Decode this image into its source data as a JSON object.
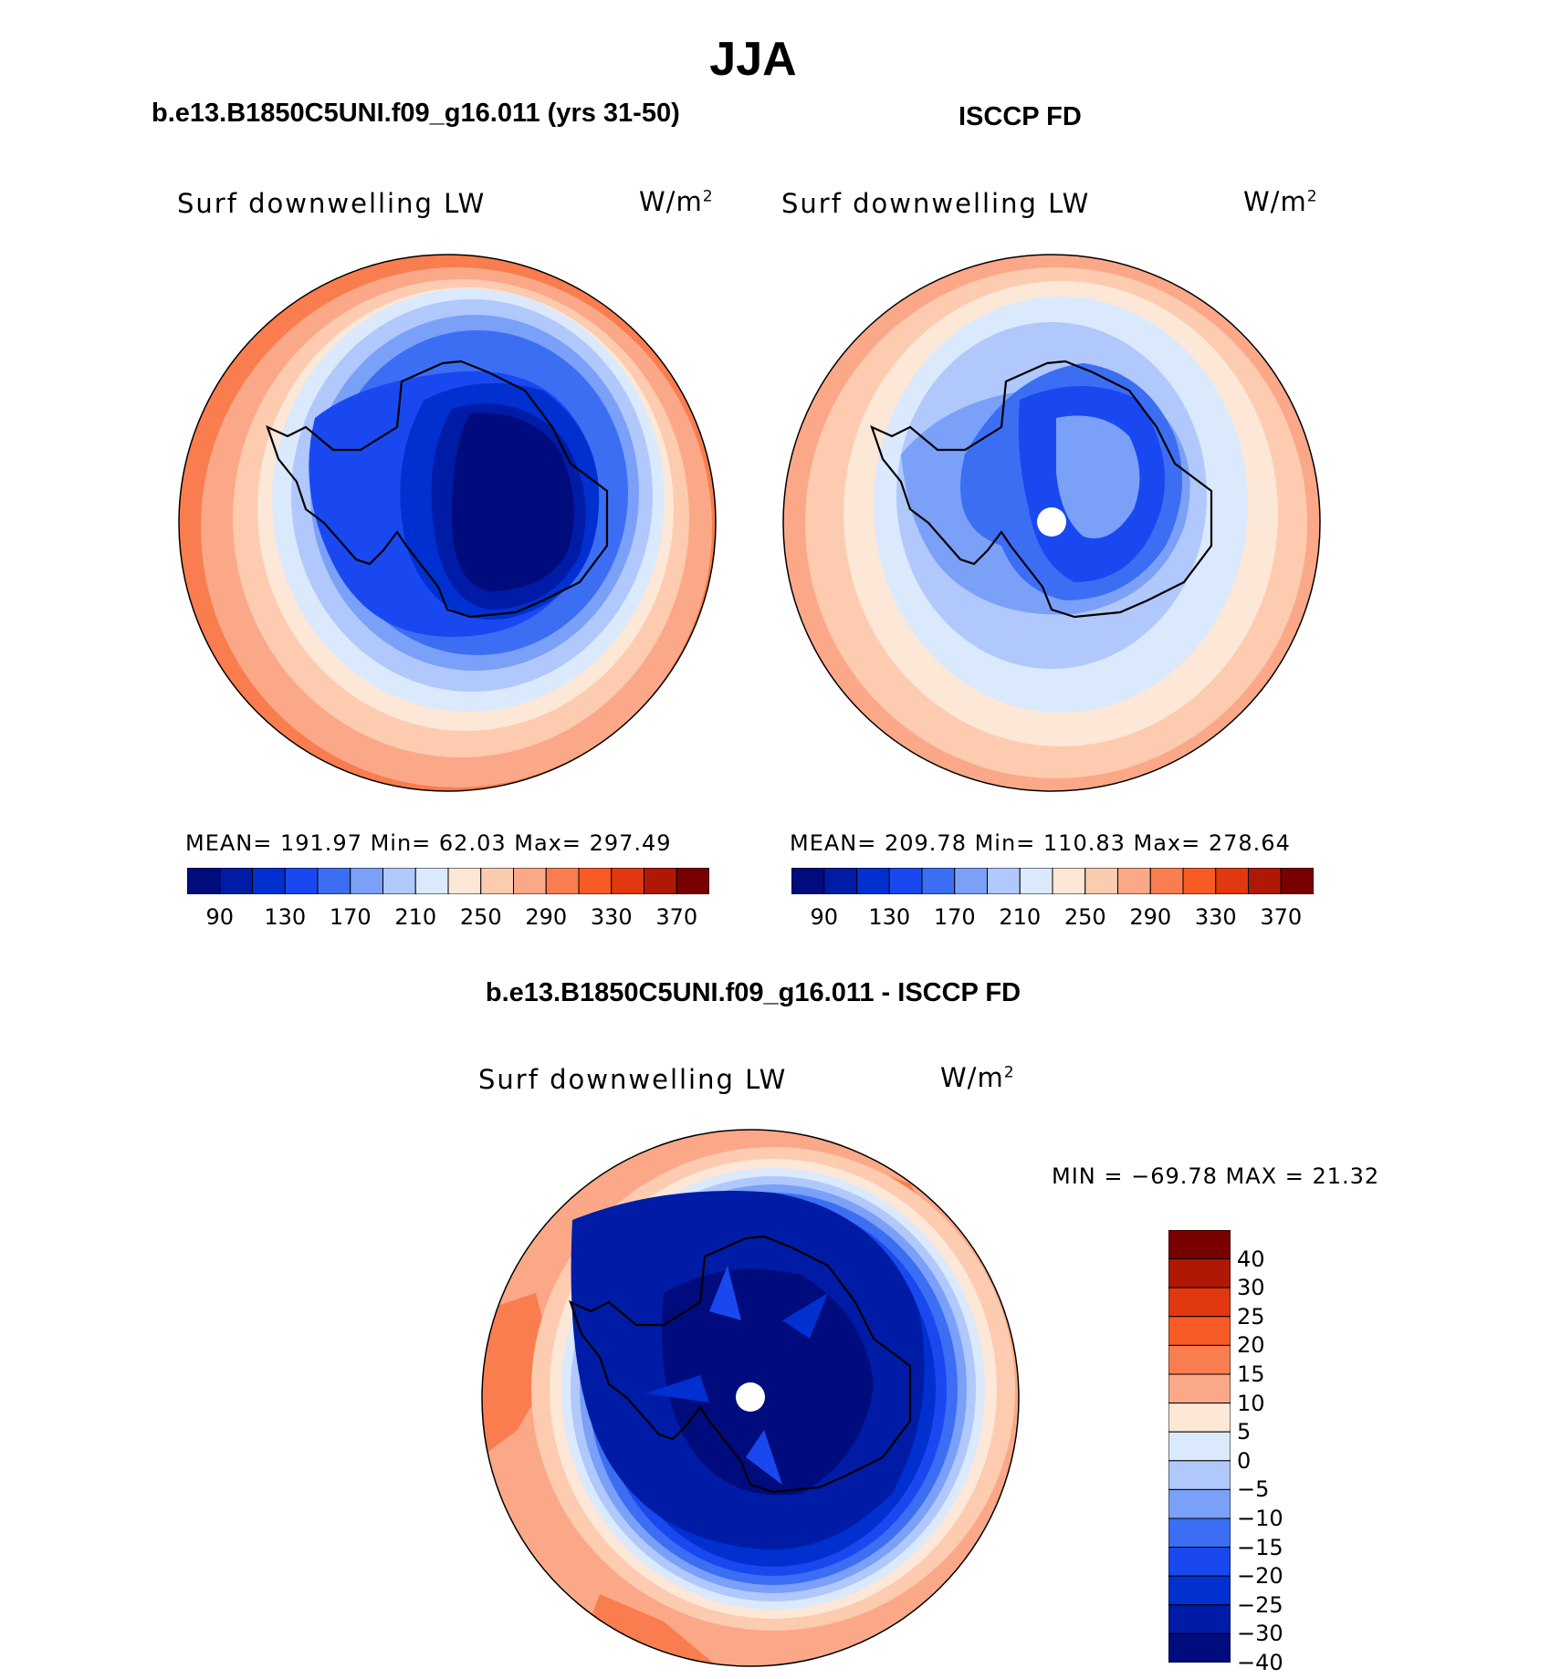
{
  "header": {
    "title": "JJA",
    "left_case": "b.e13.B1850C5UNI.f09_g16.011 (yrs 31-50)",
    "right_case": "ISCCP FD",
    "diff_title": "b.e13.B1850C5UNI.f09_g16.011 - ISCCP FD"
  },
  "panels": [
    {
      "variable": "Surf downwelling LW",
      "units": "W/m",
      "units_exp": "2",
      "stats": "MEAN=  191.97   Min=   62.03   Max=  297.49"
    },
    {
      "variable": "Surf downwelling LW",
      "units": "W/m",
      "units_exp": "2",
      "stats": "MEAN=  209.78   Min=  110.83   Max=  278.64"
    },
    {
      "variable": "Surf downwelling LW",
      "units": "W/m",
      "units_exp": "2",
      "stats": "MIN  =  −69.78  MAX  =    21.32"
    }
  ],
  "colorbars": {
    "abs_colors": [
      "#000c7d",
      "#001ca6",
      "#0030d0",
      "#1a48f0",
      "#3c6ef4",
      "#7aa0f7",
      "#b0c8fb",
      "#dbe9fc",
      "#fde7d6",
      "#fccbb0",
      "#fba888",
      "#f97d4e",
      "#f85a26",
      "#e1380f",
      "#b01806",
      "#7a0000"
    ],
    "abs_ticks": [
      "90",
      "130",
      "170",
      "210",
      "250",
      "290",
      "330",
      "370"
    ],
    "diff_colors": [
      "#000c7d",
      "#001ca6",
      "#0030d0",
      "#1a48f0",
      "#3c6ef4",
      "#7aa0f7",
      "#b0c8fb",
      "#dbe9fc",
      "#fde7d6",
      "#fba888",
      "#f97d4e",
      "#f85a26",
      "#e1380f",
      "#b01806",
      "#7a0000"
    ],
    "diff_ticks": [
      "40",
      "30",
      "25",
      "20",
      "15",
      "10",
      "5",
      "0",
      "−5",
      "−10",
      "−15",
      "−20",
      "−25",
      "−30",
      "−40"
    ]
  }
}
